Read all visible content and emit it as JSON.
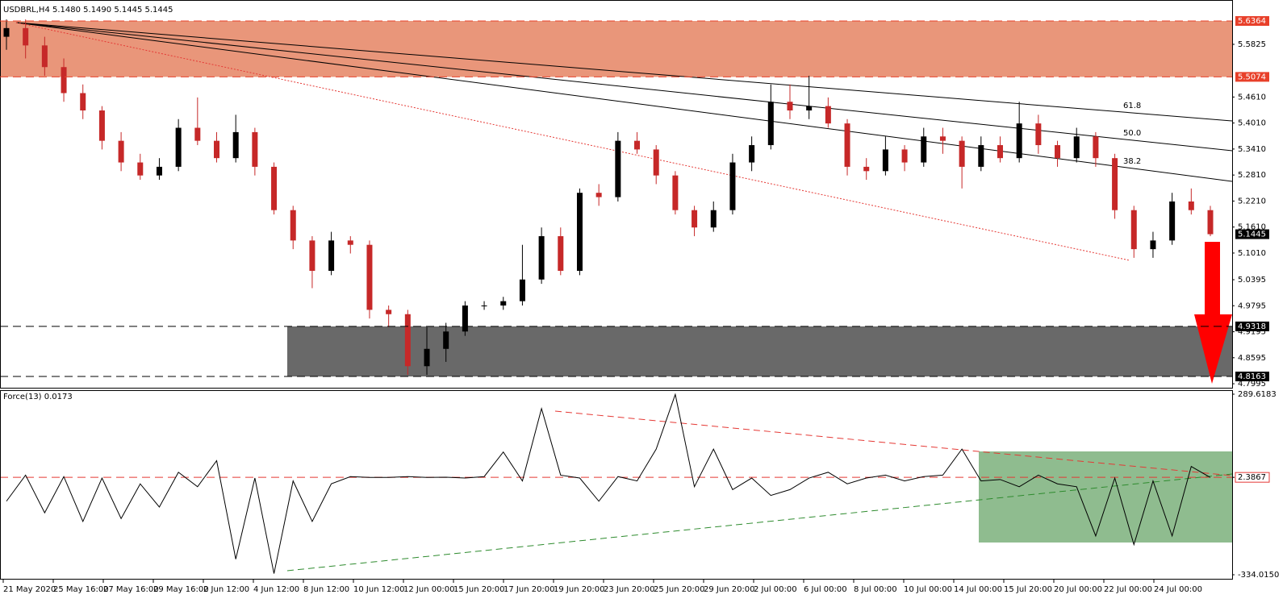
{
  "chart_data": {
    "type": "candlestick",
    "title": "USDBRL,H4 5.1480 5.1490 5.1445 5.1445",
    "up_color": "#000000",
    "down_color": "#c62828",
    "ylim": [
      4.7903,
      5.6848
    ],
    "yticks": [
      5.5825,
      {
        "value": 5.461,
        "label": "5.4610"
      },
      {
        "value": 5.401,
        "label": "5.4010"
      },
      {
        "value": 5.341,
        "label": "5.3410"
      },
      {
        "value": 5.281,
        "label": "5.2810"
      },
      {
        "value": 5.221,
        "label": "5.2210"
      },
      {
        "value": 5.161,
        "label": "5.1610"
      },
      {
        "value": 5.101,
        "label": "5.1010"
      },
      5.0395,
      4.9795,
      4.9195,
      4.8595,
      4.7995
    ],
    "levels": [
      {
        "value": 5.6364,
        "color": "#e8402a"
      },
      {
        "value": 5.5074,
        "color": "#e8402a"
      },
      {
        "value": 4.9318,
        "color": "#000000"
      },
      {
        "value": 4.8163,
        "color": "#000000"
      },
      {
        "value": 5.1445,
        "color": "#000000"
      }
    ],
    "zones": [
      {
        "from": 5.5074,
        "to": 5.6364,
        "color": "#e9967a"
      },
      {
        "from": 4.8163,
        "to": 4.9318,
        "color": "#696969"
      }
    ],
    "fib_labels": [
      "61.8",
      "50.0",
      "38.2"
    ],
    "x_labels": [
      "21 May 2020",
      "25 May 16:00",
      "27 May 16:00",
      "29 May 16:00",
      "2 Jun 12:00",
      "4 Jun 12:00",
      "8 Jun 12:00",
      "10 Jun 12:00",
      "12 Jun 00:00",
      "15 Jun 20:00",
      "17 Jun 20:00",
      "19 Jun 20:00",
      "23 Jun 20:00",
      "25 Jun 20:00",
      "29 Jun 20:00",
      "2 Jul 00:00",
      "6 Jul 00:00",
      "8 Jul 00:00",
      "10 Jul 00:00",
      "14 Jul 00:00",
      "15 Jul 20:00",
      "20 Jul 00:00",
      "22 Jul 00:00",
      "24 Jul 00:00"
    ],
    "candles": [
      [
        5.6,
        5.64,
        5.57,
        5.62
      ],
      [
        5.62,
        5.64,
        5.55,
        5.58
      ],
      [
        5.58,
        5.6,
        5.51,
        5.53
      ],
      [
        5.53,
        5.55,
        5.45,
        5.47
      ],
      [
        5.47,
        5.49,
        5.41,
        5.43
      ],
      [
        5.43,
        5.44,
        5.34,
        5.36
      ],
      [
        5.36,
        5.38,
        5.29,
        5.31
      ],
      [
        5.31,
        5.33,
        5.27,
        5.28
      ],
      [
        5.28,
        5.32,
        5.27,
        5.3
      ],
      [
        5.3,
        5.41,
        5.29,
        5.39
      ],
      [
        5.39,
        5.46,
        5.35,
        5.36
      ],
      [
        5.36,
        5.38,
        5.31,
        5.32
      ],
      [
        5.32,
        5.42,
        5.31,
        5.38
      ],
      [
        5.38,
        5.39,
        5.28,
        5.3
      ],
      [
        5.3,
        5.31,
        5.19,
        5.2
      ],
      [
        5.2,
        5.21,
        5.11,
        5.13
      ],
      [
        5.13,
        5.14,
        5.02,
        5.06
      ],
      [
        5.06,
        5.15,
        5.05,
        5.13
      ],
      [
        5.13,
        5.14,
        5.1,
        5.12
      ],
      [
        5.12,
        5.13,
        4.95,
        4.97
      ],
      [
        4.97,
        4.98,
        4.93,
        4.96
      ],
      [
        4.96,
        4.97,
        4.82,
        4.84
      ],
      [
        4.84,
        4.93,
        4.82,
        4.88
      ],
      [
        4.88,
        4.94,
        4.85,
        4.92
      ],
      [
        4.92,
        4.99,
        4.91,
        4.98
      ],
      [
        4.98,
        4.99,
        4.97,
        4.98
      ],
      [
        4.98,
        5.0,
        4.97,
        4.99
      ],
      [
        4.99,
        5.12,
        4.98,
        5.04
      ],
      [
        5.04,
        5.16,
        5.03,
        5.14
      ],
      [
        5.14,
        5.16,
        5.05,
        5.06
      ],
      [
        5.06,
        5.25,
        5.05,
        5.24
      ],
      [
        5.24,
        5.26,
        5.21,
        5.23
      ],
      [
        5.23,
        5.38,
        5.22,
        5.36
      ],
      [
        5.36,
        5.38,
        5.33,
        5.34
      ],
      [
        5.34,
        5.35,
        5.26,
        5.28
      ],
      [
        5.28,
        5.29,
        5.19,
        5.2
      ],
      [
        5.2,
        5.21,
        5.14,
        5.16
      ],
      [
        5.16,
        5.22,
        5.15,
        5.2
      ],
      [
        5.2,
        5.33,
        5.19,
        5.31
      ],
      [
        5.31,
        5.37,
        5.29,
        5.35
      ],
      [
        5.35,
        5.49,
        5.34,
        5.45
      ],
      [
        5.45,
        5.49,
        5.41,
        5.43
      ],
      [
        5.43,
        5.51,
        5.41,
        5.44
      ],
      [
        5.44,
        5.46,
        5.39,
        5.4
      ],
      [
        5.4,
        5.41,
        5.28,
        5.3
      ],
      [
        5.3,
        5.32,
        5.27,
        5.29
      ],
      [
        5.29,
        5.37,
        5.28,
        5.34
      ],
      [
        5.34,
        5.35,
        5.29,
        5.31
      ],
      [
        5.31,
        5.39,
        5.3,
        5.37
      ],
      [
        5.37,
        5.39,
        5.33,
        5.36
      ],
      [
        5.36,
        5.37,
        5.25,
        5.3
      ],
      [
        5.3,
        5.37,
        5.29,
        5.35
      ],
      [
        5.35,
        5.37,
        5.31,
        5.32
      ],
      [
        5.32,
        5.45,
        5.31,
        5.4
      ],
      [
        5.4,
        5.42,
        5.33,
        5.35
      ],
      [
        5.35,
        5.36,
        5.3,
        5.32
      ],
      [
        5.32,
        5.39,
        5.31,
        5.37
      ],
      [
        5.37,
        5.38,
        5.3,
        5.32
      ],
      [
        5.32,
        5.33,
        5.18,
        5.2
      ],
      [
        5.2,
        5.21,
        5.09,
        5.11
      ],
      [
        5.11,
        5.15,
        5.09,
        5.13
      ],
      [
        5.13,
        5.24,
        5.12,
        5.22
      ],
      [
        5.22,
        5.25,
        5.19,
        5.2
      ],
      [
        5.2,
        5.21,
        5.14,
        5.1445
      ]
    ],
    "force": {
      "title": "Force(13) 0.0173",
      "color": "#000000",
      "ylim": [
        -334.015,
        289.6183
      ],
      "yticks": [
        289.6183,
        2.3867,
        {
          "value": -334.015,
          "label": "-334.0150"
        }
      ],
      "values": [
        -80,
        10,
        -120,
        5,
        -150,
        0,
        -140,
        -20,
        -100,
        20,
        -30,
        60,
        -280,
        0,
        -330,
        -10,
        -150,
        -20,
        5,
        2,
        2,
        5,
        2,
        3,
        0,
        5,
        90,
        -10,
        240,
        10,
        0,
        -80,
        5,
        -10,
        100,
        289,
        -30,
        100,
        -40,
        0,
        -60,
        -40,
        0,
        20,
        -20,
        0,
        10,
        -10,
        5,
        10,
        100,
        -10,
        -5,
        -30,
        10,
        -20,
        -30,
        -200,
        0,
        -230,
        -10,
        -200,
        40,
        2
      ]
    }
  }
}
